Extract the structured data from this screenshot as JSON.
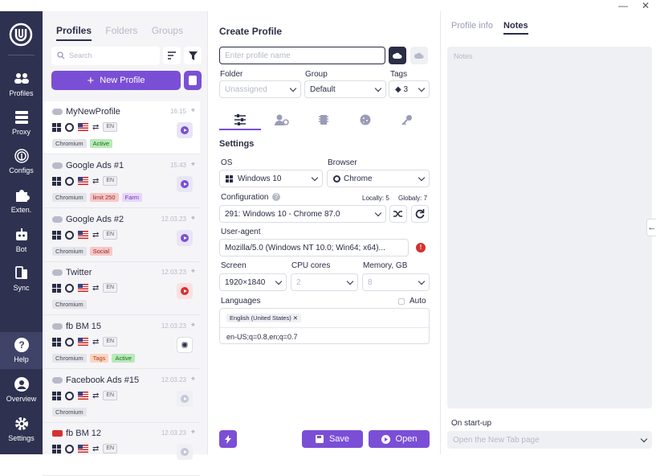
{
  "window": {
    "minimize": "—",
    "close": "✕"
  },
  "rail": {
    "items": [
      {
        "label": "Profiles",
        "icon": "users-icon"
      },
      {
        "label": "Proxy",
        "icon": "server-icon"
      },
      {
        "label": "Configs",
        "icon": "fingerprint-icon"
      },
      {
        "label": "Exten.",
        "icon": "puzzle-icon"
      },
      {
        "label": "Bot",
        "icon": "robot-icon"
      },
      {
        "label": "Sync",
        "icon": "sync-icon"
      }
    ],
    "bottom": [
      {
        "label": "Help",
        "icon": "help-icon"
      },
      {
        "label": "Overview",
        "icon": "user-circle-icon"
      },
      {
        "label": "Settings",
        "icon": "gear-icon"
      }
    ]
  },
  "list": {
    "tabs": [
      "Profiles",
      "Folders",
      "Groups"
    ],
    "search_placeholder": "Search",
    "new_profile": "New Profile",
    "profiles": [
      {
        "name": "MyNewProfile",
        "date": "16:15",
        "lang": "EN",
        "tags": [
          {
            "t": "Chromium",
            "c": "gray"
          },
          {
            "t": "Active",
            "c": "green"
          }
        ],
        "action": "play"
      },
      {
        "name": "Google Ads #1",
        "date": "15:43",
        "lang": "EN",
        "tags": [
          {
            "t": "Chromium",
            "c": "gray"
          },
          {
            "t": "limit 250",
            "c": "red"
          },
          {
            "t": "Farm",
            "c": "purple"
          }
        ],
        "action": "play"
      },
      {
        "name": "Google Ads #2",
        "date": "12.03.23",
        "lang": "EN",
        "tags": [
          {
            "t": "Chromium",
            "c": "gray"
          },
          {
            "t": "Social",
            "c": "red"
          }
        ],
        "action": "play"
      },
      {
        "name": "Twitter",
        "date": "12.03.23",
        "lang": "EN",
        "tags": [
          {
            "t": "Chromium",
            "c": "gray"
          }
        ],
        "action": "stop"
      },
      {
        "name": "fb BM 15",
        "date": "12.03.23",
        "lang": "EN",
        "tags": [
          {
            "t": "Chromium",
            "c": "gray"
          },
          {
            "t": "Tags",
            "c": "orange"
          },
          {
            "t": "Active",
            "c": "green"
          }
        ],
        "action": "loading"
      },
      {
        "name": "Facebook Ads #15",
        "date": "12.03.23",
        "lang": "EN",
        "tags": [
          {
            "t": "Chromium",
            "c": "gray"
          }
        ],
        "action": "disabled"
      },
      {
        "name": "fb BM 12",
        "date": "12.03.23",
        "lang": "EN",
        "tags": [],
        "action": "disabled"
      }
    ]
  },
  "create": {
    "title": "Create Profile",
    "name_placeholder": "Enter profile name",
    "folder_label": "Folder",
    "folder_value": "Unassigned",
    "group_label": "Group",
    "group_value": "Default",
    "tags_label": "Tags",
    "tags_value": "3",
    "settings_title": "Settings",
    "os_label": "OS",
    "os_value": "Windows 10",
    "browser_label": "Browser",
    "browser_value": "Chrome",
    "config_label": "Configuration",
    "local": "Locally: 5",
    "global": "Globaly: 7",
    "config_value": "291: Windows 10 - Chrome 87.0",
    "ua_label": "User-agent",
    "ua_value": "Mozilla/5.0 (Windows NT 10.0; Win64; x64)...",
    "screen_label": "Screen",
    "screen_value": "1920×1840",
    "cpu_label": "CPU cores",
    "cpu_value": "2",
    "mem_label": "Memory, GB",
    "mem_value": "8",
    "lang_label": "Languages",
    "auto_label": "Auto",
    "lang_chip": "English (United States)",
    "lang_value": "en-US;q=0.8,en;q=0.7",
    "save": "Save",
    "open": "Open"
  },
  "right": {
    "tabs": [
      "Profile info",
      "Notes"
    ],
    "notes_placeholder": "Notes",
    "startup_label": "On start-up",
    "startup_value": "Open the New Tab page"
  },
  "colors": {
    "accent": "#7a4fd6",
    "rail": "#2e3150"
  }
}
